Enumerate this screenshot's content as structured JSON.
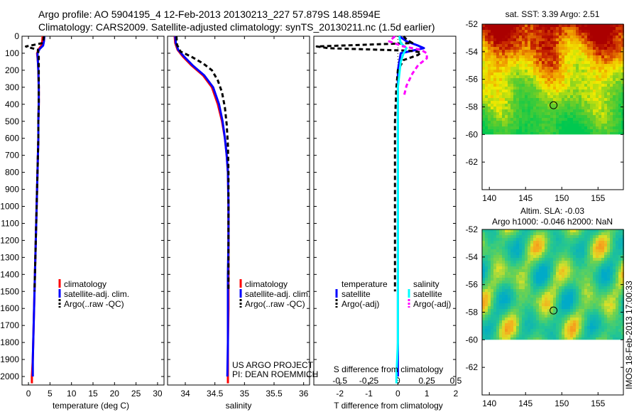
{
  "header": {
    "line1": "Argo profile: AO 5904195_4 12-Feb-2013 20130213_227 57.879S 148.8594E",
    "line2": "Climatology: CARS2009. Satellite-adjusted climatology: synTS_20130211.nc (1.5d earlier)"
  },
  "colors": {
    "climatology": "#ff0000",
    "satellite": "#0000ff",
    "argo": "#000000",
    "salinity_satellite": "#00ffff",
    "salinity_argo": "#ff00ff"
  },
  "legend_profile": {
    "climatology": "climatology",
    "satellite": "satellite-adj. clim.",
    "argo": "Argo(..raw -QC)"
  },
  "legend_diff": {
    "temp_title": "temperature",
    "sal_title": "salinity",
    "temp_sat": "satellite",
    "temp_argo": "Argo(-adj)",
    "sal_sat": "satellite",
    "sal_argo": "Argo(-adj)"
  },
  "credit": {
    "line1": "US ARGO PROJECT",
    "line2": "PI: DEAN ROEMMICH"
  },
  "side_text": "IMOS 18-Feb-2013 17:00:33",
  "chart_data": [
    {
      "type": "line",
      "id": "temperature",
      "xlabel": "temperature (deg C)",
      "ylabel": "",
      "xlim": [
        -1.5,
        31.5
      ],
      "ylim": [
        2050,
        0
      ],
      "xticks": [
        0,
        5,
        10,
        15,
        20,
        25,
        30
      ],
      "yticks": [
        0,
        100,
        200,
        300,
        400,
        500,
        600,
        700,
        800,
        900,
        1000,
        1100,
        1200,
        1300,
        1400,
        1500,
        1600,
        1700,
        1800,
        1900,
        2000
      ],
      "series": [
        {
          "name": "climatology",
          "style": "solid",
          "points": [
            [
              3.3,
              0
            ],
            [
              3.2,
              30
            ],
            [
              3.0,
              55
            ],
            [
              2.4,
              75
            ],
            [
              2.0,
              100
            ],
            [
              2.2,
              150
            ],
            [
              2.3,
              200
            ],
            [
              2.4,
              300
            ],
            [
              2.4,
              400
            ],
            [
              2.3,
              500
            ],
            [
              2.3,
              600
            ],
            [
              2.2,
              700
            ],
            [
              2.1,
              800
            ],
            [
              2.0,
              900
            ],
            [
              1.9,
              1000
            ],
            [
              1.8,
              1100
            ],
            [
              1.7,
              1200
            ],
            [
              1.6,
              1300
            ],
            [
              1.5,
              1400
            ],
            [
              1.4,
              1500
            ],
            [
              1.3,
              1600
            ],
            [
              1.2,
              1700
            ],
            [
              1.1,
              1800
            ],
            [
              1.0,
              1900
            ],
            [
              0.8,
              2000
            ],
            [
              0.8,
              2040
            ]
          ]
        },
        {
          "name": "satellite-adj. clim.",
          "style": "solid",
          "points": [
            [
              3.7,
              0
            ],
            [
              3.6,
              30
            ],
            [
              3.4,
              55
            ],
            [
              2.6,
              75
            ],
            [
              2.1,
              100
            ],
            [
              2.2,
              150
            ],
            [
              2.3,
              200
            ],
            [
              2.4,
              300
            ],
            [
              2.4,
              400
            ],
            [
              2.3,
              500
            ],
            [
              2.3,
              600
            ],
            [
              2.2,
              700
            ],
            [
              2.1,
              800
            ],
            [
              2.0,
              900
            ],
            [
              1.9,
              1000
            ],
            [
              1.8,
              1100
            ],
            [
              1.7,
              1200
            ],
            [
              1.6,
              1300
            ],
            [
              1.5,
              1400
            ],
            [
              1.4,
              1500
            ],
            [
              1.3,
              1600
            ],
            [
              1.2,
              1700
            ],
            [
              1.1,
              1800
            ],
            [
              1.0,
              1900
            ],
            [
              1.0,
              2000
            ]
          ]
        },
        {
          "name": "Argo(..raw -QC)",
          "style": "dash",
          "points": [
            [
              3.6,
              0
            ],
            [
              3.5,
              20
            ],
            [
              3.3,
              40
            ],
            [
              0.5,
              55
            ],
            [
              -0.6,
              60
            ],
            [
              0.5,
              68
            ],
            [
              2.2,
              80
            ],
            [
              2.4,
              120
            ],
            [
              2.4,
              200
            ],
            [
              2.4,
              300
            ],
            [
              2.4,
              400
            ],
            [
              2.3,
              500
            ],
            [
              2.3,
              600
            ],
            [
              2.2,
              700
            ],
            [
              2.1,
              800
            ],
            [
              2.0,
              900
            ],
            [
              1.9,
              1000
            ],
            [
              1.8,
              1100
            ],
            [
              1.7,
              1200
            ],
            [
              1.6,
              1300
            ],
            [
              1.5,
              1400
            ],
            [
              1.4,
              1500
            ]
          ]
        }
      ]
    },
    {
      "type": "line",
      "id": "salinity",
      "xlabel": "salinity",
      "ylabel": "",
      "xlim": [
        33.7,
        36.1
      ],
      "ylim": [
        2050,
        0
      ],
      "xticks": [
        34,
        34.5,
        35,
        35.5,
        36
      ],
      "yticks": [],
      "series": [
        {
          "name": "climatology",
          "style": "solid",
          "points": [
            [
              33.82,
              0
            ],
            [
              33.83,
              40
            ],
            [
              33.87,
              80
            ],
            [
              33.96,
              120
            ],
            [
              34.1,
              170
            ],
            [
              34.3,
              230
            ],
            [
              34.45,
              300
            ],
            [
              34.55,
              400
            ],
            [
              34.62,
              500
            ],
            [
              34.67,
              600
            ],
            [
              34.7,
              700
            ],
            [
              34.72,
              800
            ],
            [
              34.73,
              1000
            ],
            [
              34.73,
              1200
            ],
            [
              34.73,
              1400
            ],
            [
              34.73,
              1600
            ],
            [
              34.72,
              1800
            ],
            [
              34.72,
              2000
            ],
            [
              34.72,
              2040
            ]
          ]
        },
        {
          "name": "satellite-adj. clim.",
          "style": "solid",
          "points": [
            [
              33.83,
              0
            ],
            [
              33.84,
              40
            ],
            [
              33.88,
              80
            ],
            [
              33.98,
              120
            ],
            [
              34.12,
              170
            ],
            [
              34.32,
              230
            ],
            [
              34.47,
              300
            ],
            [
              34.57,
              400
            ],
            [
              34.63,
              500
            ],
            [
              34.67,
              600
            ],
            [
              34.7,
              700
            ],
            [
              34.72,
              800
            ],
            [
              34.73,
              1000
            ],
            [
              34.73,
              1200
            ],
            [
              34.72,
              1400
            ],
            [
              34.72,
              1600
            ],
            [
              34.72,
              1800
            ],
            [
              34.71,
              2000
            ]
          ]
        },
        {
          "name": "Argo(..raw -QC)",
          "style": "dash",
          "points": [
            [
              33.85,
              0
            ],
            [
              33.86,
              50
            ],
            [
              33.92,
              90
            ],
            [
              34.1,
              120
            ],
            [
              34.3,
              160
            ],
            [
              34.45,
              200
            ],
            [
              34.55,
              260
            ],
            [
              34.62,
              330
            ],
            [
              34.67,
              420
            ],
            [
              34.7,
              520
            ],
            [
              34.72,
              640
            ],
            [
              34.73,
              800
            ],
            [
              34.73,
              1000
            ],
            [
              34.73,
              1200
            ],
            [
              34.73,
              1400
            ],
            [
              34.73,
              1500
            ]
          ]
        }
      ]
    },
    {
      "type": "line",
      "id": "differences",
      "xlabel": "T difference from climatology",
      "xlabel2": "S difference from climatology",
      "xlim": [
        -2.9,
        2.0
      ],
      "ylim": [
        2050,
        0
      ],
      "xticks": [
        -2,
        -1,
        0,
        1,
        2
      ],
      "xticks2_labels": [
        "-0.5",
        "-0.25",
        "0",
        "0.25",
        "0.5"
      ],
      "xticks2_t": [
        -2,
        -1,
        0,
        1,
        2
      ],
      "series": [
        {
          "name": "temperature satellite",
          "style": "solid",
          "points": [
            [
              0.05,
              0
            ],
            [
              0.3,
              30
            ],
            [
              0.7,
              55
            ],
            [
              0.9,
              70
            ],
            [
              0.5,
              85
            ],
            [
              0.1,
              100
            ],
            [
              0.0,
              200
            ],
            [
              0.0,
              500
            ],
            [
              0.0,
              1000
            ],
            [
              0.0,
              1500
            ],
            [
              0.0,
              2000
            ]
          ]
        },
        {
          "name": "temperature Argo(-adj)",
          "style": "dash",
          "points": [
            [
              0.2,
              0
            ],
            [
              0.3,
              20
            ],
            [
              0.5,
              40
            ],
            [
              -2.8,
              60
            ],
            [
              -2.4,
              70
            ],
            [
              0.4,
              85
            ],
            [
              0.8,
              95
            ],
            [
              0.7,
              110
            ],
            [
              0.2,
              140
            ],
            [
              0.0,
              200
            ],
            [
              -0.05,
              300
            ],
            [
              -0.1,
              500
            ],
            [
              -0.1,
              700
            ],
            [
              -0.1,
              900
            ],
            [
              -0.1,
              1100
            ],
            [
              -0.1,
              1300
            ],
            [
              -0.1,
              1500
            ]
          ]
        },
        {
          "name": "salinity satellite",
          "style": "solid",
          "points": [
            [
              0.05,
              0
            ],
            [
              0.1,
              40
            ],
            [
              0.3,
              70
            ],
            [
              0.2,
              100
            ],
            [
              0.1,
              150
            ],
            [
              0.0,
              300
            ],
            [
              0.0,
              600
            ],
            [
              0.0,
              1000
            ],
            [
              0.0,
              1400
            ],
            [
              0.0,
              1800
            ],
            [
              -0.05,
              2000
            ],
            [
              -0.05,
              2040
            ]
          ]
        },
        {
          "name": "salinity Argo(-adj)",
          "style": "dash",
          "points": [
            [
              -0.1,
              0
            ],
            [
              -0.3,
              30
            ],
            [
              0.2,
              60
            ],
            [
              0.8,
              80
            ],
            [
              1.0,
              100
            ],
            [
              1.0,
              130
            ],
            [
              0.7,
              170
            ],
            [
              0.5,
              220
            ],
            [
              0.3,
              290
            ],
            [
              0.2,
              360
            ]
          ]
        }
      ]
    },
    {
      "type": "heatmap",
      "id": "sst-map",
      "title": "sat. SST: 3.39  Argo: 2.51",
      "xlim": [
        139,
        158.5
      ],
      "ylim": [
        -64,
        -52
      ],
      "xticks": [
        140,
        145,
        150,
        155
      ],
      "yticks": [
        -52,
        -54,
        -56,
        -58,
        -60,
        -62
      ],
      "marker": {
        "lon": 148.86,
        "lat": -57.88
      }
    },
    {
      "type": "heatmap",
      "id": "sla-map",
      "title1": "Altim. SLA: -0.03",
      "title2": "Argo h1000: -0.046  h2000: NaN",
      "xlim": [
        139,
        158.5
      ],
      "ylim": [
        -64,
        -52
      ],
      "xticks": [
        140,
        145,
        150,
        155
      ],
      "yticks": [
        -52,
        -54,
        -56,
        -58,
        -60,
        -62
      ],
      "marker": {
        "lon": 148.86,
        "lat": -57.88
      }
    }
  ]
}
